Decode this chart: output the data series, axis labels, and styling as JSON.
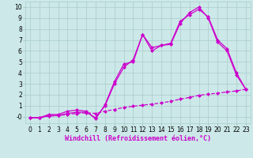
{
  "xlabel": "Windchill (Refroidissement éolien,°C)",
  "background_color": "#cce8e8",
  "grid_color": "#aacccc",
  "line_color": "#cc00cc",
  "xlim": [
    -0.5,
    23.5
  ],
  "ylim": [
    -0.6,
    10.5
  ],
  "xticks": [
    0,
    1,
    2,
    3,
    4,
    5,
    6,
    7,
    8,
    9,
    10,
    11,
    12,
    13,
    14,
    15,
    16,
    17,
    18,
    19,
    20,
    21,
    22,
    23
  ],
  "yticks": [
    0,
    1,
    2,
    3,
    4,
    5,
    6,
    7,
    8,
    9,
    10
  ],
  "line1_x": [
    0,
    1,
    2,
    3,
    4,
    5,
    6,
    7,
    8,
    9,
    10,
    11,
    12,
    13,
    14,
    15,
    16,
    17,
    18,
    19,
    20,
    21,
    22,
    23
  ],
  "line1_y": [
    -0.1,
    -0.1,
    0.2,
    0.2,
    0.5,
    0.6,
    0.5,
    -0.2,
    1.1,
    3.2,
    4.8,
    5.0,
    7.5,
    6.0,
    6.5,
    6.7,
    8.7,
    9.3,
    9.8,
    9.1,
    7.0,
    6.2,
    4.0,
    2.5
  ],
  "line2_x": [
    0,
    1,
    2,
    3,
    4,
    5,
    6,
    7,
    8,
    9,
    10,
    11,
    12,
    13,
    14,
    15,
    16,
    17,
    18,
    19,
    20,
    21,
    22,
    23
  ],
  "line2_y": [
    -0.1,
    -0.1,
    0.1,
    0.1,
    0.3,
    0.4,
    0.4,
    -0.1,
    1.0,
    3.0,
    4.5,
    5.2,
    7.5,
    6.3,
    6.5,
    6.6,
    8.5,
    9.5,
    10.0,
    9.0,
    6.8,
    6.0,
    3.8,
    2.5
  ],
  "line3_x": [
    0,
    1,
    2,
    3,
    4,
    5,
    6,
    7,
    8,
    9,
    10,
    11,
    12,
    13,
    14,
    15,
    16,
    17,
    18,
    19,
    20,
    21,
    22,
    23
  ],
  "line3_y": [
    -0.1,
    -0.1,
    0.05,
    0.1,
    0.2,
    0.3,
    0.35,
    0.3,
    0.5,
    0.65,
    0.85,
    0.95,
    1.05,
    1.15,
    1.25,
    1.4,
    1.6,
    1.75,
    1.95,
    2.05,
    2.15,
    2.25,
    2.35,
    2.5
  ],
  "xlabel_fontsize": 6,
  "tick_fontsize": 5.5,
  "linewidth": 0.9,
  "markersize": 2.5
}
